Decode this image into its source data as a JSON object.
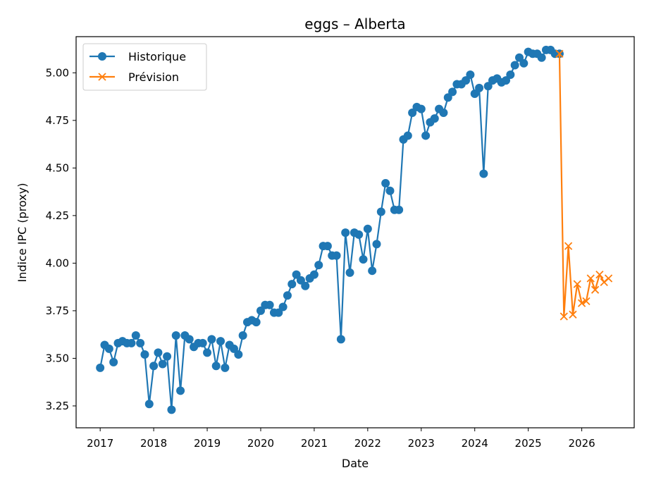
{
  "chart_data": {
    "type": "line",
    "title": "eggs – Alberta",
    "xlabel": "Date",
    "ylabel": "Indice IPC (proxy)",
    "xlim": [
      2016.55,
      2026.98
    ],
    "ylim": [
      3.135,
      5.19
    ],
    "x_ticks": [
      2017,
      2018,
      2019,
      2020,
      2021,
      2022,
      2023,
      2024,
      2025,
      2026
    ],
    "x_tick_labels": [
      "2017",
      "2018",
      "2019",
      "2020",
      "2021",
      "2022",
      "2023",
      "2024",
      "2025",
      "2026"
    ],
    "y_ticks": [
      3.25,
      3.5,
      3.75,
      4.0,
      4.25,
      4.5,
      4.75,
      5.0
    ],
    "y_tick_labels": [
      "3.25",
      "3.50",
      "3.75",
      "4.00",
      "4.25",
      "4.50",
      "4.75",
      "5.00"
    ],
    "grid": false,
    "legend_position": "top-left",
    "series": [
      {
        "name": "Historique",
        "color": "#1f77b4",
        "marker": "circle",
        "x": [
          "2017-01",
          "2017-02",
          "2017-03",
          "2017-04",
          "2017-05",
          "2017-06",
          "2017-07",
          "2017-08",
          "2017-09",
          "2017-10",
          "2017-11",
          "2017-12",
          "2018-01",
          "2018-02",
          "2018-03",
          "2018-04",
          "2018-05",
          "2018-06",
          "2018-07",
          "2018-08",
          "2018-09",
          "2018-10",
          "2018-11",
          "2018-12",
          "2019-01",
          "2019-02",
          "2019-03",
          "2019-04",
          "2019-05",
          "2019-06",
          "2019-07",
          "2019-08",
          "2019-09",
          "2019-10",
          "2019-11",
          "2019-12",
          "2020-01",
          "2020-02",
          "2020-03",
          "2020-04",
          "2020-05",
          "2020-06",
          "2020-07",
          "2020-08",
          "2020-09",
          "2020-10",
          "2020-11",
          "2020-12",
          "2021-01",
          "2021-02",
          "2021-03",
          "2021-04",
          "2021-05",
          "2021-06",
          "2021-07",
          "2021-08",
          "2021-09",
          "2021-10",
          "2021-11",
          "2021-12",
          "2022-01",
          "2022-02",
          "2022-03",
          "2022-04",
          "2022-05",
          "2022-06",
          "2022-07",
          "2022-08",
          "2022-09",
          "2022-10",
          "2022-11",
          "2022-12",
          "2023-01",
          "2023-02",
          "2023-03",
          "2023-04",
          "2023-05",
          "2023-06",
          "2023-07",
          "2023-08",
          "2023-09",
          "2023-10",
          "2023-11",
          "2023-12",
          "2024-01",
          "2024-02",
          "2024-03",
          "2024-04",
          "2024-05",
          "2024-06",
          "2024-07",
          "2024-08",
          "2024-09",
          "2024-10",
          "2024-11",
          "2024-12",
          "2025-01",
          "2025-02",
          "2025-03",
          "2025-04",
          "2025-05",
          "2025-06",
          "2025-07",
          "2025-08"
        ],
        "values": [
          3.45,
          3.57,
          3.55,
          3.48,
          3.58,
          3.59,
          3.58,
          3.58,
          3.62,
          3.58,
          3.52,
          3.26,
          3.46,
          3.53,
          3.47,
          3.51,
          3.23,
          3.62,
          3.33,
          3.62,
          3.6,
          3.56,
          3.58,
          3.58,
          3.53,
          3.6,
          3.46,
          3.59,
          3.45,
          3.57,
          3.55,
          3.52,
          3.62,
          3.69,
          3.7,
          3.69,
          3.75,
          3.78,
          3.78,
          3.74,
          3.74,
          3.77,
          3.83,
          3.89,
          3.94,
          3.91,
          3.88,
          3.92,
          3.94,
          3.99,
          4.09,
          4.09,
          4.04,
          4.04,
          3.6,
          4.16,
          3.95,
          4.16,
          4.15,
          4.02,
          4.18,
          3.96,
          4.1,
          4.27,
          4.42,
          4.38,
          4.28,
          4.28,
          4.65,
          4.67,
          4.79,
          4.82,
          4.81,
          4.67,
          4.74,
          4.76,
          4.81,
          4.79,
          4.87,
          4.9,
          4.94,
          4.94,
          4.96,
          4.99,
          4.89,
          4.92,
          4.47,
          4.93,
          4.96,
          4.97,
          4.95,
          4.96,
          4.99,
          5.04,
          5.08,
          5.05,
          5.11,
          5.1,
          5.1,
          5.08,
          5.12,
          5.12,
          5.1,
          5.1
        ]
      },
      {
        "name": "Prévision",
        "color": "#ff7f0e",
        "marker": "x",
        "x": [
          "2025-08",
          "2025-09",
          "2025-10",
          "2025-11",
          "2025-12",
          "2026-01",
          "2026-02",
          "2026-03",
          "2026-04",
          "2026-05",
          "2026-06",
          "2026-07"
        ],
        "values": [
          5.1,
          3.72,
          4.09,
          3.73,
          3.89,
          3.79,
          3.8,
          3.92,
          3.86,
          3.94,
          3.9,
          3.92
        ]
      }
    ]
  }
}
